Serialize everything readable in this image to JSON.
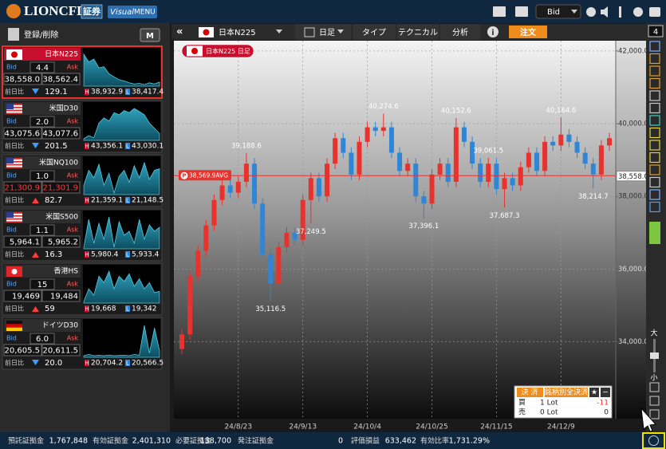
{
  "header": {
    "logo": "LIONCFD",
    "logo_badge": "証券",
    "menu_visual": "Visual",
    "menu": "MENU",
    "price_mode": "Bid"
  },
  "watchlist": {
    "edit": "登録/削除",
    "mode": "M",
    "labels": {
      "bid": "Bid",
      "ask": "Ask",
      "change": "前日比",
      "high": "H",
      "low": "L"
    },
    "items": [
      {
        "flag": "jp",
        "name": "日本N225",
        "spread": "4.4",
        "bid": "38,558.0",
        "ask": "38,562.4",
        "direction": "down",
        "change": "129.1",
        "high": "38,932.9",
        "low": "38,417.4",
        "selected": true,
        "spark": [
          38930,
          38800,
          38850,
          38700,
          38720,
          38600,
          38550,
          38500,
          38480,
          38450,
          38430,
          38440,
          38420,
          38450,
          38430,
          38460
        ]
      },
      {
        "flag": "us",
        "name": "米国D30",
        "spread": "2.0",
        "bid": "43,075.6",
        "ask": "43,077.6",
        "direction": "down",
        "change": "201.5",
        "high": "43,356.1",
        "low": "43,030.1",
        "spark": [
          43050,
          43080,
          43060,
          43200,
          43250,
          43220,
          43300,
          43280,
          43320,
          43300,
          43340,
          43310,
          43280,
          43200,
          43150,
          43100
        ]
      },
      {
        "flag": "us",
        "name": "米国NQ100",
        "spread": "1.0",
        "bid": "21,300.9",
        "ask": "21,301.9",
        "direction": "up",
        "change": "82.7",
        "high": "21,359.1",
        "low": "21,148.5",
        "price_color": "#ff3b3b",
        "spark": [
          21200,
          21300,
          21250,
          21340,
          21200,
          21280,
          21150,
          21260,
          21300,
          21220,
          21330,
          21250,
          21350,
          21240,
          21300,
          21310
        ]
      },
      {
        "flag": "us",
        "name": "米国S500",
        "spread": "1.1",
        "bid": "5,964.1",
        "ask": "5,965.2",
        "direction": "up",
        "change": "16.3",
        "high": "5,980.4",
        "low": "5,933.4",
        "spark": [
          5940,
          5975,
          5945,
          5970,
          5950,
          5978,
          5940,
          5972,
          5955,
          5960,
          5945,
          5975,
          5950,
          5968,
          5960,
          5965
        ]
      },
      {
        "flag": "hk",
        "name": "香港HS",
        "spread": "15",
        "bid": "19,469",
        "ask": "19,484",
        "direction": "up",
        "change": "59",
        "high": "19,668",
        "low": "19,342",
        "spark": [
          19400,
          19500,
          19450,
          19600,
          19550,
          19640,
          19500,
          19600,
          19560,
          19620,
          19520,
          19580,
          19500,
          19550,
          19470,
          19480
        ]
      },
      {
        "flag": "de",
        "name": "ドイツD30",
        "spread": "6.0",
        "bid": "20,605.5",
        "ask": "20,611.5",
        "direction": "down",
        "change": "20.0",
        "high": "20,704.2",
        "low": "20,566.5",
        "spark": [
          20580,
          20585,
          20580,
          20582,
          20580,
          20583,
          20580,
          20581,
          20582,
          20580,
          20585,
          20582,
          20700,
          20590,
          20690,
          20600
        ]
      }
    ]
  },
  "toolbar": {
    "symbol": "日本N225",
    "period": "日足",
    "type": "タイプ",
    "technical": "テクニカル",
    "analysis": "分析",
    "info": "i",
    "order": "注文"
  },
  "side_tools": {
    "count": "4",
    "zoom_in": "大",
    "zoom_out": "小"
  },
  "chart_data": {
    "type": "candlestick",
    "title": "日本N225 日足",
    "up_color": "#e8322e",
    "down_color": "#2f86d6",
    "grid": true,
    "categories": [
      null,
      null,
      null,
      null,
      null,
      null,
      null,
      "24/8/23",
      null,
      null,
      null,
      null,
      null,
      null,
      null,
      "24/9/13",
      null,
      null,
      null,
      null,
      null,
      null,
      null,
      "24/10/4",
      null,
      null,
      null,
      null,
      null,
      null,
      null,
      "24/10/25",
      null,
      null,
      null,
      null,
      null,
      null,
      null,
      "24/11/15",
      null,
      null,
      null,
      null,
      null,
      null,
      null,
      "24/12/9",
      null,
      null,
      null,
      null,
      null,
      null
    ],
    "open": [
      33800,
      34200,
      35800,
      36500,
      37200,
      37900,
      38300,
      38100,
      38400,
      38900,
      37800,
      36400,
      35600,
      36600,
      37000,
      36800,
      37900,
      38500,
      38000,
      38900,
      39600,
      39200,
      38600,
      39500,
      39900,
      39800,
      39900,
      39200,
      38700,
      38900,
      38000,
      37800,
      38600,
      38900,
      38400,
      39900,
      39500,
      38900,
      38400,
      38900,
      38200,
      38500,
      38300,
      38800,
      39200,
      38700,
      39500,
      39400,
      39700,
      39500,
      39200,
      38900,
      38600,
      39400
    ],
    "high": [
      34350,
      35950,
      36650,
      37350,
      38050,
      38450,
      38450,
      38550,
      {
        "value": 39188.6,
        "label": "39,188.6"
      },
      39050,
      37950,
      36550,
      36750,
      37150,
      37150,
      38050,
      38650,
      38650,
      39050,
      39750,
      39750,
      39350,
      39650,
      40050,
      40050,
      {
        "value": 40274.6,
        "label": "40,274.6"
      },
      40050,
      39350,
      39050,
      39050,
      38150,
      38750,
      39050,
      39050,
      {
        "value": 40152.6,
        "label": "40,152.6"
      },
      40050,
      39650,
      39050,
      {
        "value": 39061.5,
        "label": "39,061.5"
      },
      39050,
      38650,
      38650,
      38950,
      39350,
      39350,
      39650,
      39650,
      {
        "value": 40164.6,
        "label": "40,164.6"
      },
      39850,
      39650,
      39350,
      39050,
      39550,
      39750
    ],
    "low": [
      33650,
      34050,
      35650,
      36350,
      37050,
      37750,
      37950,
      37950,
      38250,
      37650,
      36250,
      {
        "value": 35116.5,
        "label": "35,116.5"
      },
      35450,
      36450,
      36650,
      36650,
      {
        "value": 37249.5,
        "label": "37,249.5"
      },
      37850,
      37850,
      38750,
      39050,
      38450,
      38450,
      39350,
      39650,
      39650,
      39050,
      38550,
      38550,
      37850,
      {
        "value": 37396.1,
        "label": "37,396.1"
      },
      37650,
      38450,
      38250,
      38250,
      39350,
      38750,
      38250,
      38250,
      38050,
      {
        "value": 37687.3,
        "label": "37,687.3"
      },
      38150,
      38150,
      38650,
      38550,
      38550,
      39250,
      39250,
      39350,
      39050,
      38750,
      {
        "value": 38214.7,
        "label": "38,214.7"
      },
      38450,
      39250
    ],
    "close": [
      34200,
      35800,
      36500,
      37200,
      37900,
      38300,
      38100,
      38400,
      38900,
      37800,
      36400,
      35600,
      36600,
      37000,
      36800,
      37900,
      38500,
      38000,
      38900,
      39600,
      39200,
      38600,
      39500,
      39900,
      39800,
      39900,
      39200,
      38700,
      38900,
      38000,
      37800,
      38600,
      38900,
      38400,
      39900,
      39500,
      38900,
      38400,
      38900,
      38200,
      38500,
      38300,
      38800,
      39200,
      38700,
      39500,
      39400,
      39700,
      39500,
      39200,
      38900,
      38600,
      39400,
      39600
    ],
    "ylim": [
      31880,
      42284
    ],
    "yticks": [
      {
        "value": 34000,
        "label": "34,000.0"
      },
      {
        "value": 36000,
        "label": "36,000.0"
      },
      {
        "value": 38000,
        "label": "38,000.0"
      },
      {
        "value": 40000,
        "label": "40,000.0"
      },
      {
        "value": 42000,
        "label": "42,000.0"
      }
    ],
    "avg_line": {
      "marker": "P",
      "value": 38569.9,
      "label": "38,569.9AVG",
      "color": "#e8322e"
    },
    "current_price": {
      "value": 38558.0,
      "label": "38,558.0"
    }
  },
  "position_panel": {
    "settle": "決 済",
    "settle_all": "銘柄別全決済",
    "favorite": "★",
    "collapse": "−",
    "rows": [
      {
        "side": "買",
        "lots": "1 Lot",
        "pl": "-11",
        "pl_color": "#e8322e"
      },
      {
        "side": "売",
        "lots": "0 Lot",
        "pl": "0"
      }
    ]
  },
  "status_bar": {
    "items": [
      {
        "label": "預託証拠金",
        "value": "1,767,848"
      },
      {
        "label": "有効証拠金",
        "value": "2,401,310"
      },
      {
        "label": "必要証拠金",
        "value": "138,700"
      },
      {
        "label": "発注証拠金",
        "value": "0"
      },
      {
        "label": "評価損益",
        "value": "633,462"
      },
      {
        "label": "有効比率",
        "value": "1,731.29%"
      }
    ]
  }
}
